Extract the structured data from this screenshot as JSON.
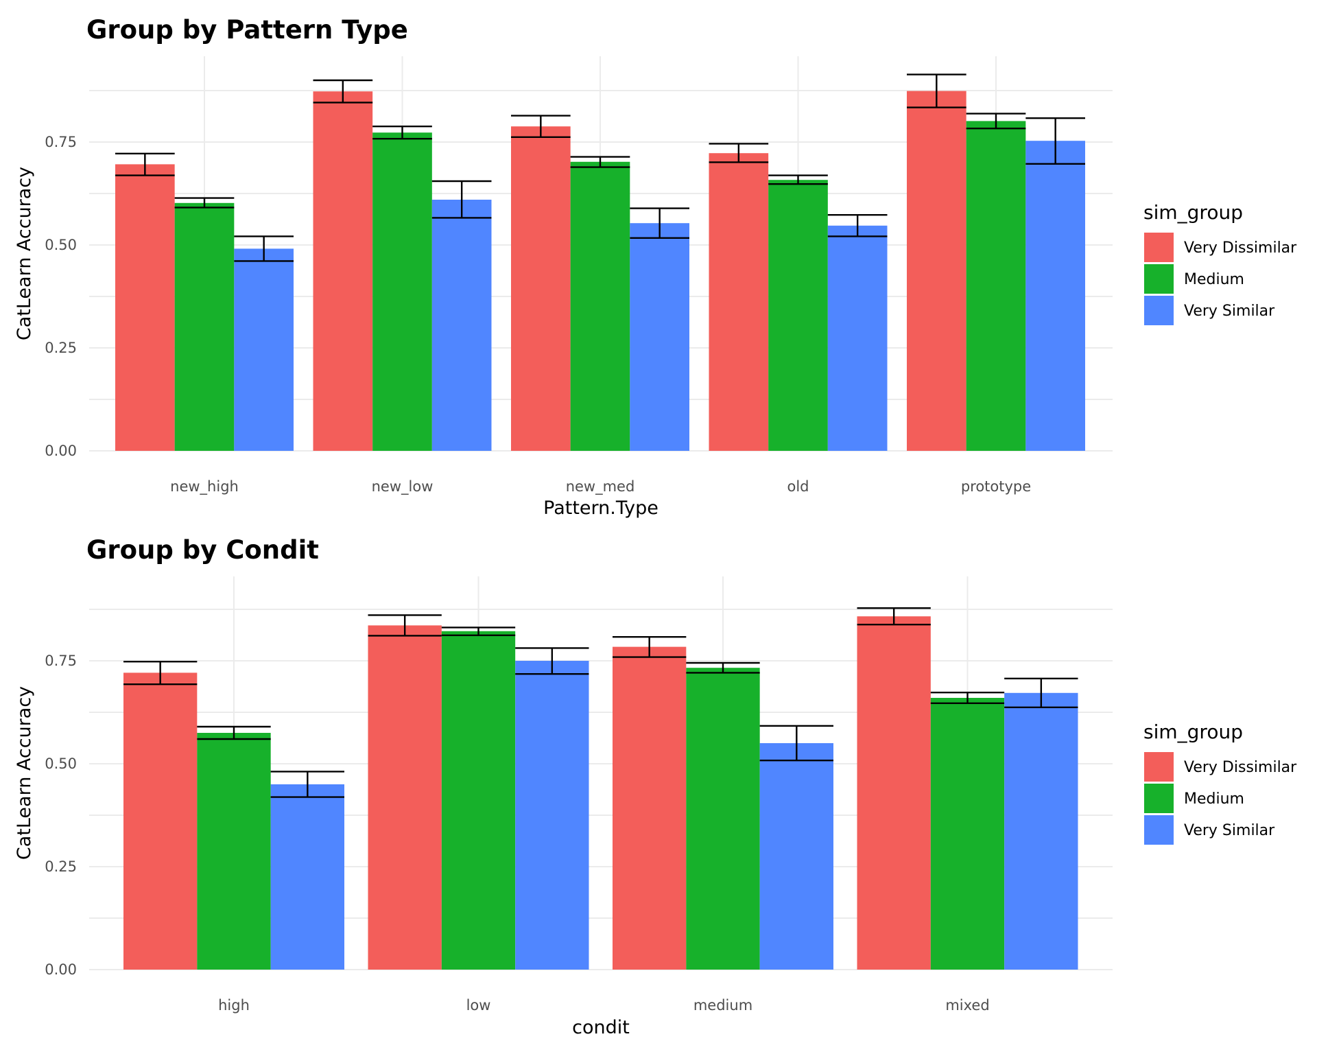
{
  "colors": {
    "Very Dissimilar": "#F35E5A",
    "Medium": "#17B12B",
    "Very Similar": "#5086FF"
  },
  "chart_data": [
    {
      "type": "bar",
      "title": "Group by Pattern Type",
      "xlabel": "Pattern.Type",
      "ylabel": "CatLearn Accuracy",
      "ylim": [
        0,
        0.96
      ],
      "yticks": [
        "0.00",
        "0.25",
        "0.50",
        "0.75"
      ],
      "categories": [
        "new_high",
        "new_low",
        "new_med",
        "old",
        "prototype"
      ],
      "legend_title": "sim_group",
      "legend_position": "right",
      "grid": true,
      "series": [
        {
          "name": "Very Dissimilar",
          "values": [
            0.696,
            0.873,
            0.788,
            0.723,
            0.874
          ],
          "err_low": [
            0.669,
            0.846,
            0.762,
            0.701,
            0.834
          ],
          "err_high": [
            0.722,
            0.9,
            0.814,
            0.746,
            0.914
          ]
        },
        {
          "name": "Medium",
          "values": [
            0.602,
            0.773,
            0.702,
            0.658,
            0.801
          ],
          "err_low": [
            0.591,
            0.758,
            0.689,
            0.648,
            0.783
          ],
          "err_high": [
            0.614,
            0.788,
            0.714,
            0.669,
            0.819
          ]
        },
        {
          "name": "Very Similar",
          "values": [
            0.491,
            0.61,
            0.553,
            0.547,
            0.753
          ],
          "err_low": [
            0.461,
            0.566,
            0.517,
            0.521,
            0.697
          ],
          "err_high": [
            0.521,
            0.655,
            0.589,
            0.573,
            0.808
          ]
        }
      ]
    },
    {
      "type": "bar",
      "title": "Group by Condit",
      "xlabel": "condit",
      "ylabel": "CatLearn Accuracy",
      "ylim": [
        0,
        0.96
      ],
      "yticks": [
        "0.00",
        "0.25",
        "0.50",
        "0.75"
      ],
      "categories": [
        "high",
        "low",
        "medium",
        "mixed"
      ],
      "legend_title": "sim_group",
      "legend_position": "right",
      "grid": true,
      "series": [
        {
          "name": "Very Dissimilar",
          "values": [
            0.721,
            0.836,
            0.784,
            0.858
          ],
          "err_low": [
            0.693,
            0.811,
            0.759,
            0.838
          ],
          "err_high": [
            0.748,
            0.861,
            0.808,
            0.878
          ]
        },
        {
          "name": "Medium",
          "values": [
            0.575,
            0.822,
            0.733,
            0.66
          ],
          "err_low": [
            0.56,
            0.812,
            0.721,
            0.647
          ],
          "err_high": [
            0.59,
            0.831,
            0.745,
            0.673
          ]
        },
        {
          "name": "Very Similar",
          "values": [
            0.45,
            0.75,
            0.55,
            0.672
          ],
          "err_low": [
            0.419,
            0.718,
            0.508,
            0.637
          ],
          "err_high": [
            0.481,
            0.781,
            0.592,
            0.707
          ]
        }
      ]
    }
  ]
}
